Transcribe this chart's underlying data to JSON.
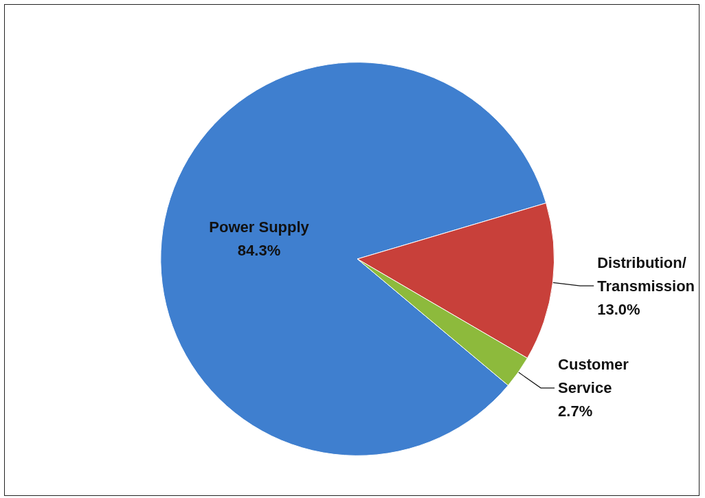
{
  "chart_data": {
    "type": "pie",
    "categories": [
      "Power Supply",
      "Distribution/Transmission",
      "Customer Service"
    ],
    "values": [
      84.3,
      13.0,
      2.7
    ],
    "colors": [
      "#3f7fcf",
      "#c8403a",
      "#8dba3c"
    ],
    "value_labels": [
      "84.3%",
      "13.0%",
      "2.7%"
    ],
    "legend": false
  }
}
